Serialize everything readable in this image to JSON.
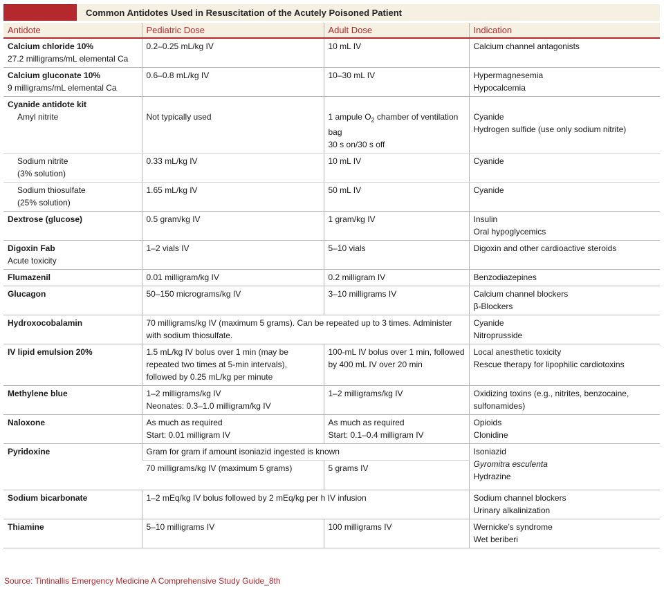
{
  "title": "Common Antidotes Used in Resuscitation of the Acutely Poisoned Patient",
  "headers": {
    "antidote": "Antidote",
    "pediatric": "Pediatric Dose",
    "adult": "Adult Dose",
    "indication": "Indication"
  },
  "rows": {
    "calcium_chloride": {
      "name": "Calcium chloride 10%",
      "sub": "27.2 milligrams/mL elemental Ca",
      "pediatric": "0.2–0.25 mL/kg IV",
      "adult": "10 mL IV",
      "indication": "Calcium channel antagonists"
    },
    "calcium_gluconate": {
      "name": "Calcium gluconate 10%",
      "sub": "9 milligrams/mL elemental Ca",
      "pediatric": "0.6–0.8 mL/kg IV",
      "adult": "10–30 mL IV",
      "indication1": "Hypermagnesemia",
      "indication2": "Hypocalcemia"
    },
    "cyanide_kit": {
      "name": "Cyanide antidote kit",
      "amyl": {
        "name": "Amyl nitrite",
        "pediatric": "Not typically used",
        "adult1_pre": "1 ampule O",
        "adult1_sub": "2",
        "adult1_post": " chamber of ventilation bag",
        "adult2": "30 s on/30 s off",
        "indication1": "Cyanide",
        "indication2": "Hydrogen sulfide (use only sodium nitrite)"
      },
      "nitrite": {
        "name": "Sodium nitrite",
        "sub": "(3% solution)",
        "pediatric": "0.33 mL/kg IV",
        "adult": "10 mL IV",
        "indication": "Cyanide"
      },
      "thiosulfate": {
        "name": "Sodium thiosulfate",
        "sub": "(25% solution)",
        "pediatric": "1.65 mL/kg IV",
        "adult": "50 mL IV",
        "indication": "Cyanide"
      }
    },
    "dextrose": {
      "name": "Dextrose (glucose)",
      "pediatric": "0.5 gram/kg IV",
      "adult": "1 gram/kg IV",
      "indication1": "Insulin",
      "indication2": "Oral hypoglycemics"
    },
    "digoxin_fab": {
      "name": "Digoxin Fab",
      "sub": "Acute toxicity",
      "pediatric": "1–2 vials IV",
      "adult": "5–10 vials",
      "indication": "Digoxin and other cardioactive steroids"
    },
    "flumazenil": {
      "name": "Flumazenil",
      "pediatric": "0.01 milligram/kg IV",
      "adult": "0.2 milligram IV",
      "indication": "Benzodiazepines"
    },
    "glucagon": {
      "name": "Glucagon",
      "pediatric": "50–150 micrograms/kg IV",
      "adult": "3–10 milligrams IV",
      "indication1": "Calcium channel blockers",
      "indication2": "β-Blockers"
    },
    "hydroxocobalamin": {
      "name": "Hydroxocobalamin",
      "dose": "70 milligrams/kg IV (maximum 5 grams). Can be repeated up to 3 times. Administer with sodium thiosulfate.",
      "indication1": "Cyanide",
      "indication2": "Nitroprusside"
    },
    "lipid": {
      "name": "IV lipid emulsion 20%",
      "pediatric": "1.5 mL/kg IV bolus over 1 min (may be repeated two times at 5-min intervals), followed by 0.25 mL/kg per minute",
      "adult": "100-mL IV bolus over 1 min, followed by 400 mL IV over 20 min",
      "indication1": "Local anesthetic toxicity",
      "indication2": "Rescue therapy for lipophilic cardiotoxins"
    },
    "methylene_blue": {
      "name": "Methylene blue",
      "pediatric1": "1–2 milligrams/kg IV",
      "pediatric2": "Neonates: 0.3–1.0 milligram/kg IV",
      "adult": "1–2 milligrams/kg IV",
      "indication": "Oxidizing toxins (e.g., nitrites, benzocaine, sulfonamides)"
    },
    "naloxone": {
      "name": "Naloxone",
      "pediatric1": "As much as required",
      "pediatric2": "Start: 0.01 milligram IV",
      "adult1": "As much as required",
      "adult2": "Start: 0.1–0.4 milligram IV",
      "indication1": "Opioids",
      "indication2": "Clonidine"
    },
    "pyridoxine": {
      "name": "Pyridoxine",
      "dose_known": "Gram for gram if amount isoniazid ingested is known",
      "pediatric": "70 milligrams/kg IV (maximum 5 grams)",
      "adult": "5 grams IV",
      "indication1": "Isoniazid",
      "indication2": "Gyromitra esculenta",
      "indication3": "Hydrazine"
    },
    "bicarbonate": {
      "name": "Sodium bicarbonate",
      "dose": "1–2 mEq/kg IV bolus followed by 2 mEq/kg per h IV infusion",
      "indication1": "Sodium channel blockers",
      "indication2": "Urinary alkalinization"
    },
    "thiamine": {
      "name": "Thiamine",
      "pediatric": "5–10 milligrams IV",
      "adult": "100 milligrams IV",
      "indication1": "Wernicke’s syndrome",
      "indication2": "Wet beriberi"
    }
  },
  "source": "Source: Tintinallis Emergency Medicine A Comprehensive Study Guide_8th",
  "colors": {
    "accent": "#b3292e",
    "header_bg": "#f6f0e2",
    "rule": "#b7b7b7"
  }
}
